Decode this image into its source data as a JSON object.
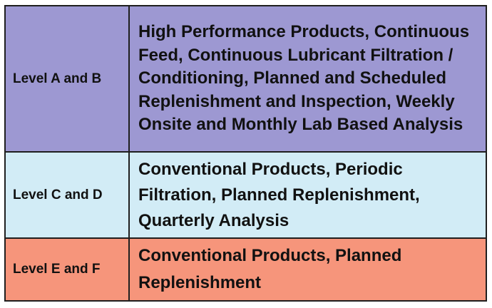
{
  "table": {
    "colors": {
      "row_a_b": "#9d98d2",
      "row_c_d": "#d2ecf6",
      "row_e_f": "#f6957b",
      "border": "#1f1f1f"
    },
    "rows": [
      {
        "level": "Level A and B",
        "description": "High Performance Products, Continuous Feed, Continuous Lubricant Filtration / Conditioning, Planned and Scheduled Replenishment and Inspection, Weekly Onsite and Monthly Lab Based Analysis"
      },
      {
        "level": "Level C and D",
        "description": "Conventional Products, Periodic Filtration, Planned Replenishment, Quarterly Analysis"
      },
      {
        "level": "Level E and F",
        "description": "Conventional Products, Planned Replenishment"
      }
    ]
  }
}
